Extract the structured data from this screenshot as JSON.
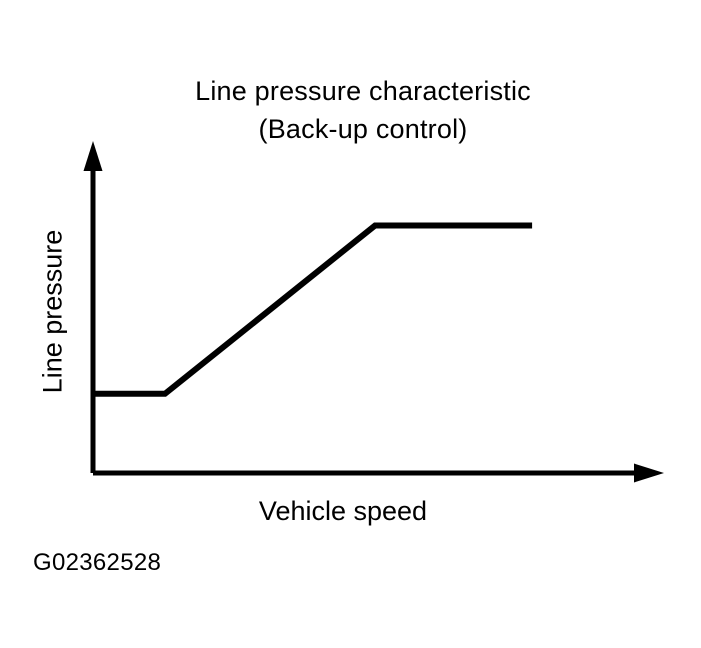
{
  "colors": {
    "ink": "#000000",
    "background": "#ffffff"
  },
  "figure": {
    "title_line1": "Line pressure characteristic",
    "title_line2": "(Back-up control)",
    "x_axis_label": "Vehicle speed",
    "y_axis_label": "Line pressure",
    "figure_code": "G02362528"
  },
  "chart_data": {
    "type": "line",
    "title": "Line pressure characteristic",
    "subtitle": "(Back-up control)",
    "xlabel": "Vehicle speed",
    "ylabel": "Line pressure",
    "x_tick_labels": [],
    "y_tick_labels": [],
    "grid": false,
    "legend": false,
    "axes_style": "unlabeled qualitative axes with arrowheads at positive ends",
    "xlim_rel": [
      0,
      1
    ],
    "ylim_rel": [
      0,
      1
    ],
    "series": [
      {
        "name": "line-pressure-vs-vehicle-speed-backup-control",
        "shape": "flat low segment, linear rise, flat high segment (saturation)",
        "points_rel": [
          {
            "x": 0.0,
            "y": 0.24
          },
          {
            "x": 0.126,
            "y": 0.24
          },
          {
            "x": 0.494,
            "y": 0.75
          },
          {
            "x": 0.769,
            "y": 0.75
          }
        ]
      }
    ]
  }
}
